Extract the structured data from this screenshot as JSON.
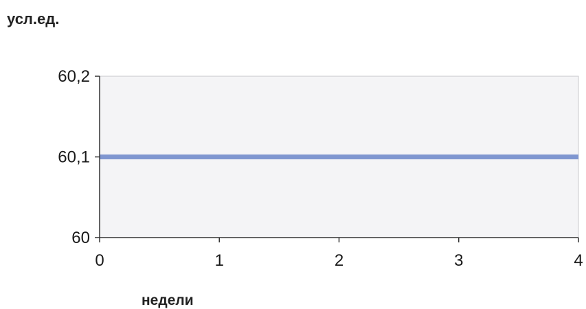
{
  "chart_data": {
    "type": "line",
    "title": "",
    "ylabel": "усл.ед.",
    "xlabel": "недели",
    "x": [
      0,
      4
    ],
    "series": [
      {
        "values": [
          60.1,
          60.1
        ]
      }
    ],
    "xlim": [
      0,
      4
    ],
    "ylim": [
      60,
      60.2
    ],
    "x_ticks": [
      0,
      1,
      2,
      3,
      4
    ],
    "x_tick_labels": [
      "0",
      "1",
      "2",
      "3",
      "4"
    ],
    "y_ticks": [
      60,
      60.1,
      60.2
    ],
    "y_tick_labels": [
      "60",
      "60,1",
      "60,2"
    ],
    "grid": false,
    "legend": "none"
  },
  "colors": {
    "plot_background": "#f4f4f6",
    "line": "#7f96d0",
    "axis": "#333333"
  }
}
